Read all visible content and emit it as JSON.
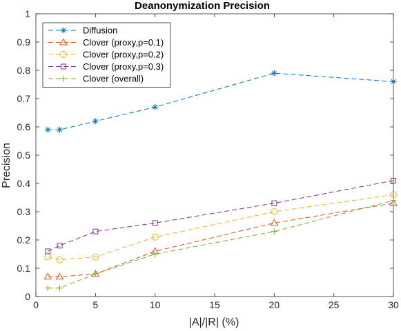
{
  "chart_data": {
    "type": "line",
    "title": "Deanonymization Precision",
    "xlabel": "|A|/|R| (%)",
    "ylabel": "Precision",
    "xlim": [
      0,
      30
    ],
    "ylim": [
      0,
      1
    ],
    "xticks": [
      0,
      5,
      10,
      15,
      20,
      25,
      30
    ],
    "yticks": [
      0,
      0.1,
      0.2,
      0.3,
      0.4,
      0.5,
      0.6,
      0.7,
      0.8,
      0.9,
      1
    ],
    "xtick_labels": [
      "0",
      "5",
      "10",
      "15",
      "20",
      "25",
      "30"
    ],
    "ytick_labels": [
      "0",
      "0.1",
      "0.2",
      "0.3",
      "0.4",
      "0.5",
      "0.6",
      "0.7",
      "0.8",
      "0.9",
      "1"
    ],
    "grid": false,
    "legend_position": "top-left",
    "x": [
      1,
      2,
      5,
      10,
      20,
      30
    ],
    "series": [
      {
        "name": "Diffusion",
        "values": [
          0.59,
          0.59,
          0.62,
          0.67,
          0.79,
          0.76
        ],
        "color": "#0072BD",
        "marker": "asterisk"
      },
      {
        "name": "Clover (proxy,p=0.1)",
        "values": [
          0.07,
          0.07,
          0.08,
          0.16,
          0.26,
          0.33
        ],
        "color": "#D95319",
        "marker": "triangle"
      },
      {
        "name": "Clover (proxy,p=0.2)",
        "values": [
          0.14,
          0.13,
          0.14,
          0.21,
          0.3,
          0.36
        ],
        "color": "#EDB120",
        "marker": "circle"
      },
      {
        "name": "Clover (proxy,p=0.3)",
        "values": [
          0.16,
          0.18,
          0.23,
          0.26,
          0.33,
          0.41
        ],
        "color": "#7E2F8E",
        "marker": "square"
      },
      {
        "name": "Clover (overall)",
        "values": [
          0.03,
          0.03,
          0.08,
          0.15,
          0.23,
          0.34
        ],
        "color": "#77AC30",
        "marker": "plus"
      }
    ]
  }
}
